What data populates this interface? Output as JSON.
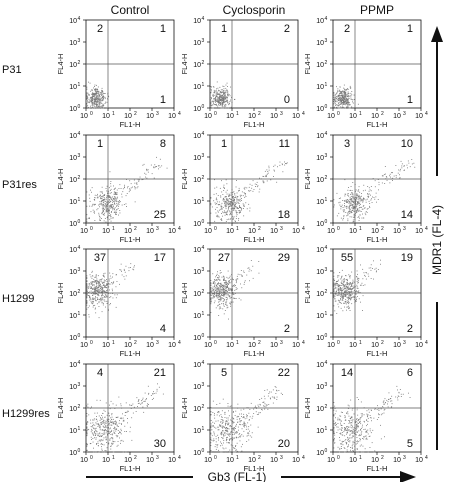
{
  "chart_data": {
    "type": "scatter",
    "title": "",
    "columns": [
      "Control",
      "Cyclosporin",
      "PPMP"
    ],
    "rows": [
      "P31",
      "P31res",
      "H1299",
      "H1299res"
    ],
    "panel_xlabel": "FL1-H",
    "panel_ylabel": "FL4-H",
    "tick_labels": [
      "10",
      "10",
      "10",
      "10",
      "10"
    ],
    "tick_exponents": [
      "0",
      "1",
      "2",
      "3",
      "4"
    ],
    "xlim": [
      1,
      10000
    ],
    "ylim": [
      1,
      10000
    ],
    "xscale": "log",
    "yscale": "log",
    "x_axis_title": "Gb3 (FL-1)",
    "y_axis_title": "MDR1 (FL-4)",
    "quadrant_note": "Quadrant percentages: [upper-left, upper-right, lower-right]",
    "panels": [
      [
        {
          "row": "P31",
          "column": "Control",
          "ul": "2",
          "ur": "1",
          "lr": "1"
        },
        {
          "row": "P31",
          "column": "Cyclosporin",
          "ul": "1",
          "ur": "2",
          "lr": "0"
        },
        {
          "row": "P31",
          "column": "PPMP",
          "ul": "2",
          "ur": "1",
          "lr": "1"
        }
      ],
      [
        {
          "row": "P31res",
          "column": "Control",
          "ul": "1",
          "ur": "8",
          "lr": "25"
        },
        {
          "row": "P31res",
          "column": "Cyclosporin",
          "ul": "1",
          "ur": "11",
          "lr": "18"
        },
        {
          "row": "P31res",
          "column": "PPMP",
          "ul": "3",
          "ur": "10",
          "lr": "14"
        }
      ],
      [
        {
          "row": "H1299",
          "column": "Control",
          "ul": "37",
          "ur": "17",
          "lr": "4"
        },
        {
          "row": "H1299",
          "column": "Cyclosporin",
          "ul": "27",
          "ur": "29",
          "lr": "2"
        },
        {
          "row": "H1299",
          "column": "PPMP",
          "ul": "55",
          "ur": "19",
          "lr": "2"
        }
      ],
      [
        {
          "row": "H1299res",
          "column": "Control",
          "ul": "4",
          "ur": "21",
          "lr": "30"
        },
        {
          "row": "H1299res",
          "column": "Cyclosporin",
          "ul": "5",
          "ur": "22",
          "lr": "20"
        },
        {
          "row": "H1299res",
          "column": "PPMP",
          "ul": "14",
          "ur": "6",
          "lr": "5"
        }
      ]
    ],
    "gate_x": 10,
    "gate_y": 100,
    "colors": {
      "points": "#7a7a7a",
      "axes": "#111111",
      "gate": "#555555"
    }
  }
}
